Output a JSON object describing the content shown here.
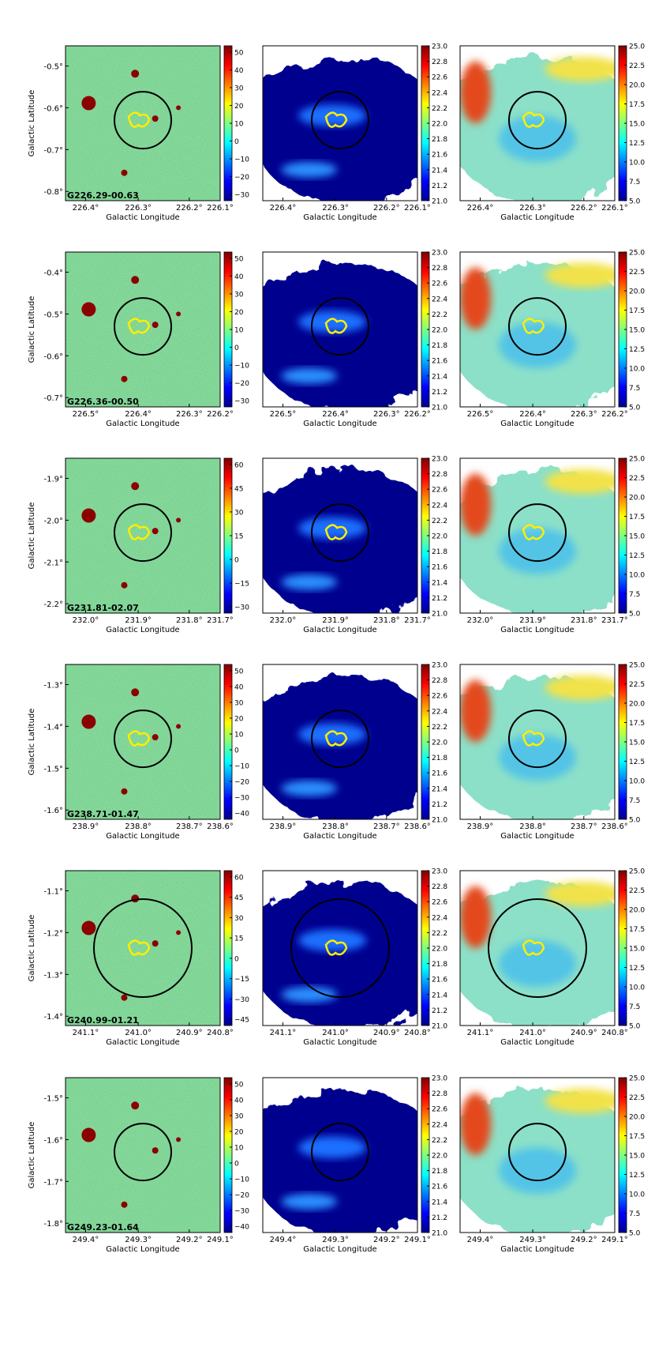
{
  "figure": {
    "x_axis_label": "Galactic Longitude",
    "y_axis_label": "Galactic Latitude",
    "colors": {
      "frame": "#000000",
      "contour": "#ffee00",
      "circle": "#000000",
      "blank": "#ffffff"
    }
  },
  "chart_data": [
    {
      "type": "heatmap",
      "title": "G226.29-00.63",
      "xlabel": "Galactic Longitude",
      "ylabel": "Galactic Latitude",
      "xticks": [
        "226.4°",
        "226.3°",
        "226.2°",
        "226.1°"
      ],
      "yticks": [
        "-0.5°",
        "-0.6°",
        "-0.7°",
        "-0.8°"
      ],
      "colorbars": [
        [
          "50",
          "40",
          "30",
          "20",
          "10",
          "0",
          "−10",
          "−20",
          "−30"
        ],
        [
          "23.0",
          "22.8",
          "22.6",
          "22.4",
          "22.2",
          "22.0",
          "21.8",
          "21.6",
          "21.4",
          "21.2",
          "21.0"
        ],
        [
          "25.0",
          "22.5",
          "20.0",
          "17.5",
          "15.0",
          "12.5",
          "10.0",
          "7.5",
          "5.0"
        ]
      ]
    },
    {
      "type": "heatmap",
      "title": "G226.36-00.50",
      "xlabel": "Galactic Longitude",
      "ylabel": "Galactic Latitude",
      "xticks": [
        "226.5°",
        "226.4°",
        "226.3°",
        "226.2°"
      ],
      "yticks": [
        "-0.4°",
        "-0.5°",
        "-0.6°",
        "-0.7°"
      ],
      "colorbars": [
        [
          "50",
          "40",
          "30",
          "20",
          "10",
          "0",
          "−10",
          "−20",
          "−30"
        ],
        [
          "23.0",
          "22.8",
          "22.6",
          "22.4",
          "22.2",
          "22.0",
          "21.8",
          "21.6",
          "21.4",
          "21.2",
          "21.0"
        ],
        [
          "25.0",
          "22.5",
          "20.0",
          "17.5",
          "15.0",
          "12.5",
          "10.0",
          "7.5",
          "5.0"
        ]
      ]
    },
    {
      "type": "heatmap",
      "title": "G231.81-02.07",
      "xlabel": "Galactic Longitude",
      "ylabel": "Galactic Latitude",
      "xticks": [
        "232.0°",
        "231.9°",
        "231.8°",
        "231.7°"
      ],
      "yticks": [
        "-1.9°",
        "-2.0°",
        "-2.1°",
        "-2.2°"
      ],
      "colorbars": [
        [
          "60",
          "45",
          "30",
          "15",
          "0",
          "−15",
          "−30"
        ],
        [
          "23.0",
          "22.8",
          "22.6",
          "22.4",
          "22.2",
          "22.0",
          "21.8",
          "21.6",
          "21.4",
          "21.2",
          "21.0"
        ],
        [
          "25.0",
          "22.5",
          "20.0",
          "17.5",
          "15.0",
          "12.5",
          "10.0",
          "7.5",
          "5.0"
        ]
      ]
    },
    {
      "type": "heatmap",
      "title": "G238.71-01.47",
      "xlabel": "Galactic Longitude",
      "ylabel": "Galactic Latitude",
      "xticks": [
        "238.9°",
        "238.8°",
        "238.7°",
        "238.6°"
      ],
      "yticks": [
        "-1.3°",
        "-1.4°",
        "-1.5°",
        "-1.6°"
      ],
      "colorbars": [
        [
          "50",
          "40",
          "30",
          "20",
          "10",
          "0",
          "−10",
          "−20",
          "−30",
          "−40"
        ],
        [
          "23.0",
          "22.8",
          "22.6",
          "22.4",
          "22.2",
          "22.0",
          "21.8",
          "21.6",
          "21.4",
          "21.2",
          "21.0"
        ],
        [
          "25.0",
          "22.5",
          "20.0",
          "17.5",
          "15.0",
          "12.5",
          "10.0",
          "7.5",
          "5.0"
        ]
      ]
    },
    {
      "type": "heatmap",
      "title": "G240.99-01.21",
      "xlabel": "Galactic Longitude",
      "ylabel": "Galactic Latitude",
      "xticks": [
        "241.1°",
        "241.0°",
        "240.9°",
        "240.8°"
      ],
      "yticks": [
        "-1.1°",
        "-1.2°",
        "-1.3°",
        "-1.4°"
      ],
      "colorbars": [
        [
          "60",
          "45",
          "30",
          "15",
          "0",
          "−15",
          "−30",
          "−45"
        ],
        [
          "23.0",
          "22.8",
          "22.6",
          "22.4",
          "22.2",
          "22.0",
          "21.8",
          "21.6",
          "21.4",
          "21.2",
          "21.0"
        ],
        [
          "25.0",
          "22.5",
          "20.0",
          "17.5",
          "15.0",
          "12.5",
          "10.0",
          "7.5",
          "5.0"
        ]
      ]
    },
    {
      "type": "heatmap",
      "title": "G249.23-01.64",
      "xlabel": "Galactic Longitude",
      "ylabel": "Galactic Latitude",
      "xticks": [
        "249.4°",
        "249.3°",
        "249.2°",
        "249.1°"
      ],
      "yticks": [
        "-1.5°",
        "-1.6°",
        "-1.7°",
        "-1.8°"
      ],
      "colorbars": [
        [
          "50",
          "40",
          "30",
          "20",
          "10",
          "0",
          "−10",
          "−20",
          "−30",
          "−40"
        ],
        [
          "23.0",
          "22.8",
          "22.6",
          "22.4",
          "22.2",
          "22.0",
          "21.8",
          "21.6",
          "21.4",
          "21.2",
          "21.0"
        ],
        [
          "25.0",
          "22.5",
          "20.0",
          "17.5",
          "15.0",
          "12.5",
          "10.0",
          "7.5",
          "5.0"
        ]
      ]
    }
  ]
}
